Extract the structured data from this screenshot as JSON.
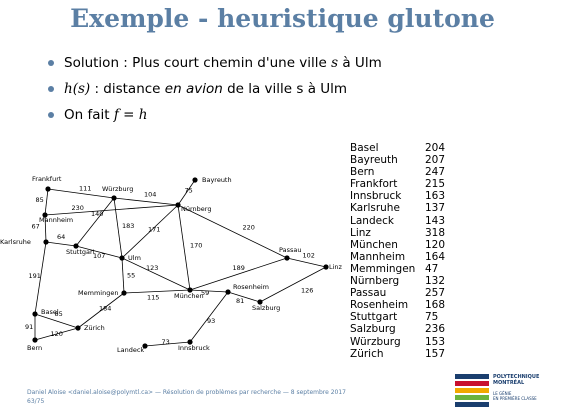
{
  "slide": {
    "title": "Exemple - heuristique glutone",
    "bullets": [
      {
        "pre": "Solution : Plus court chemin d'une ville ",
        "var": "s",
        "post": " à Ulm"
      },
      {
        "pre": "",
        "var": "h(s)",
        "mid": " : distance ",
        "em": "en avion",
        "post": " de la ville s à Ulm"
      },
      {
        "pre": "On fait ",
        "math": "f = h",
        "post": ""
      }
    ],
    "footer_line1": "Daniel Aloise <daniel.aloise@polymtl.ca> — Résolution de problèmes par recherche — 8 septembre 2017",
    "footer_line2": "63/75",
    "logo_line1": "POLYTECHNIQUE",
    "logo_line2": "MONTRÉAL",
    "logo_sub1": "LE GÉNIE",
    "logo_sub2": "EN PREMIÈRE CLASSE",
    "accent_color": "#5b7fa4"
  },
  "graph": {
    "nodes": [
      {
        "id": "Frankfurt",
        "label": "Frankfurt"
      },
      {
        "id": "Wurzburg",
        "label": "Würzburg"
      },
      {
        "id": "Bayreuth",
        "label": "Bayreuth"
      },
      {
        "id": "Nurnberg",
        "label": "Nürnberg"
      },
      {
        "id": "Mannheim",
        "label": "Mannheim"
      },
      {
        "id": "Karlsruhe",
        "label": "Karlsruhe"
      },
      {
        "id": "Stuttgart",
        "label": "Stuttgart"
      },
      {
        "id": "Ulm",
        "label": "Ulm"
      },
      {
        "id": "Passau",
        "label": "Passau"
      },
      {
        "id": "Linz",
        "label": "Linz"
      },
      {
        "id": "Memmingen",
        "label": "Memmingen"
      },
      {
        "id": "Munchen",
        "label": "München"
      },
      {
        "id": "Rosenheim",
        "label": "Rosenheim"
      },
      {
        "id": "Salzburg",
        "label": "Salzburg"
      },
      {
        "id": "Basel",
        "label": "Basel"
      },
      {
        "id": "Zurich",
        "label": "Zürich"
      },
      {
        "id": "Bern",
        "label": "Bern"
      },
      {
        "id": "Landeck",
        "label": "Landeck"
      },
      {
        "id": "Innsbruck",
        "label": "Innsbruck"
      }
    ],
    "edges": [
      {
        "from": "Frankfurt",
        "to": "Wurzburg",
        "weight": "111"
      },
      {
        "from": "Frankfurt",
        "to": "Mannheim",
        "weight": "85"
      },
      {
        "from": "Wurzburg",
        "to": "Nurnberg",
        "weight": "104"
      },
      {
        "from": "Mannheim",
        "to": "Nurnberg",
        "weight": "230"
      },
      {
        "from": "Bayreuth",
        "to": "Nurnberg",
        "weight": "75"
      },
      {
        "from": "Mannheim",
        "to": "Karlsruhe",
        "weight": "67"
      },
      {
        "from": "Karlsruhe",
        "to": "Stuttgart",
        "weight": "64"
      },
      {
        "from": "Wurzburg",
        "to": "Stuttgart",
        "weight": "140"
      },
      {
        "from": "Wurzburg",
        "to": "Ulm",
        "weight": "183"
      },
      {
        "from": "Stuttgart",
        "to": "Ulm",
        "weight": "107"
      },
      {
        "from": "Ulm",
        "to": "Nurnberg",
        "weight": "171"
      },
      {
        "from": "Nurnberg",
        "to": "Munchen",
        "weight": "170"
      },
      {
        "from": "Nurnberg",
        "to": "Passau",
        "weight": "220"
      },
      {
        "from": "Passau",
        "to": "Linz",
        "weight": "102"
      },
      {
        "from": "Passau",
        "to": "Munchen",
        "weight": "189"
      },
      {
        "from": "Ulm",
        "to": "Munchen",
        "weight": "123"
      },
      {
        "from": "Ulm",
        "to": "Memmingen",
        "weight": "55"
      },
      {
        "from": "Memmingen",
        "to": "Munchen",
        "weight": "115"
      },
      {
        "from": "Munchen",
        "to": "Rosenheim",
        "weight": "59"
      },
      {
        "from": "Rosenheim",
        "to": "Salzburg",
        "weight": "81"
      },
      {
        "from": "Salzburg",
        "to": "Linz",
        "weight": "126"
      },
      {
        "from": "Rosenheim",
        "to": "Innsbruck",
        "weight": "93"
      },
      {
        "from": "Landeck",
        "to": "Innsbruck",
        "weight": "73"
      },
      {
        "from": "Karlsruhe",
        "to": "Basel",
        "weight": "191"
      },
      {
        "from": "Basel",
        "to": "Zurich",
        "weight": "85"
      },
      {
        "from": "Basel",
        "to": "Bern",
        "weight": "91"
      },
      {
        "from": "Bern",
        "to": "Zurich",
        "weight": "120"
      },
      {
        "from": "Memmingen",
        "to": "Zurich",
        "weight": "184"
      }
    ]
  },
  "table": {
    "rows": [
      {
        "city": "Basel",
        "dist": "204"
      },
      {
        "city": "Bayreuth",
        "dist": "207"
      },
      {
        "city": "Bern",
        "dist": "247"
      },
      {
        "city": "Frankfort",
        "dist": "215"
      },
      {
        "city": "Innsbruck",
        "dist": "163"
      },
      {
        "city": "Karlsruhe",
        "dist": "137"
      },
      {
        "city": "Landeck",
        "dist": "143"
      },
      {
        "city": "Linz",
        "dist": "318"
      },
      {
        "city": "München",
        "dist": "120"
      },
      {
        "city": "Mannheim",
        "dist": "164"
      },
      {
        "city": "Memmingen",
        "dist": "47"
      },
      {
        "city": "Nürnberg",
        "dist": "132"
      },
      {
        "city": "Passau",
        "dist": "257"
      },
      {
        "city": "Rosenheim",
        "dist": "168"
      },
      {
        "city": "Stuttgart",
        "dist": "75"
      },
      {
        "city": "Salzburg",
        "dist": "236"
      },
      {
        "city": "Würzburg",
        "dist": "153"
      },
      {
        "city": "Zürich",
        "dist": "157"
      }
    ]
  }
}
